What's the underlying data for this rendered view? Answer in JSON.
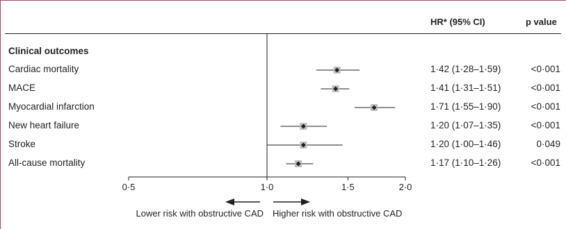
{
  "chart_data": {
    "type": "forest",
    "header": {
      "estimate_col": "HR* (95% CI)",
      "p_col": "p value"
    },
    "section": "Clinical outcomes",
    "rows": [
      {
        "label": "Cardiac mortality",
        "hr": 1.42,
        "lo": 1.28,
        "hi": 1.59,
        "text": "1·42 (1·28–1·59)",
        "p": "<0·001"
      },
      {
        "label": "MACE",
        "hr": 1.41,
        "lo": 1.31,
        "hi": 1.51,
        "text": "1·41 (1·31–1·51)",
        "p": "<0·001"
      },
      {
        "label": "Myocardial infarction",
        "hr": 1.71,
        "lo": 1.55,
        "hi": 1.9,
        "text": "1·71 (1·55–1·90)",
        "p": "<0·001"
      },
      {
        "label": "New heart failure",
        "hr": 1.2,
        "lo": 1.07,
        "hi": 1.35,
        "text": "1·20 (1·07–1·35)",
        "p": "<0·001"
      },
      {
        "label": "Stroke",
        "hr": 1.2,
        "lo": 1.0,
        "hi": 1.46,
        "text": "1·20 (1·00–1·46)",
        "p": "0·049"
      },
      {
        "label": "All-cause mortality",
        "hr": 1.17,
        "lo": 1.1,
        "hi": 1.26,
        "text": "1·17 (1·10–1·26)",
        "p": "<0·001"
      }
    ],
    "x_axis": {
      "range": [
        0.5,
        2.0
      ],
      "reference": 1.0,
      "ticks": [
        {
          "value": 0.5,
          "label": "0·5"
        },
        {
          "value": 1.0,
          "label": "1·0"
        },
        {
          "value": 1.5,
          "label": "1·5"
        },
        {
          "value": 2.0,
          "label": "2·0"
        }
      ]
    },
    "direction_labels": {
      "left": "Lower risk with obstructive CAD",
      "right": "Higher risk with obstructive CAD"
    },
    "colors": {
      "frame": "#c8336f",
      "square": "#bcbec0",
      "ink": "#231f20"
    }
  }
}
